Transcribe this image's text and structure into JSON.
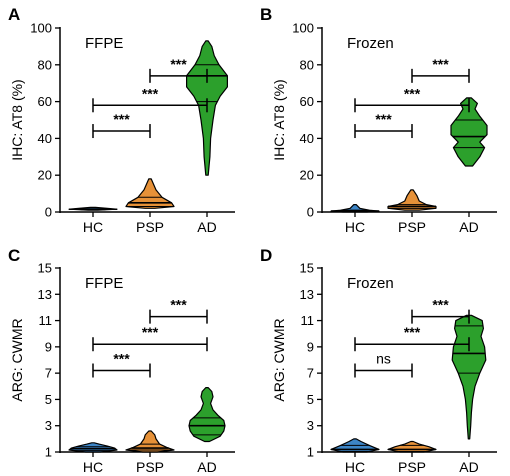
{
  "chart_data": [
    {
      "type": "violin",
      "panel_letter": "A",
      "inset_title": "FFPE",
      "ylabel": "IHC: AT8 (%)",
      "categories": [
        "HC",
        "PSP",
        "AD"
      ],
      "ylim": [
        0,
        100
      ],
      "yticks": [
        0,
        20,
        40,
        60,
        80,
        100
      ],
      "series": [
        {
          "group": "HC",
          "color": "#3d85c6",
          "median": 1.5,
          "quartiles": [
            1.2,
            1.8
          ],
          "min": 1,
          "max": 2.5,
          "max_halfwidth": 1
        },
        {
          "group": "PSP",
          "color": "#e69138",
          "median": 5,
          "quartiles": [
            3,
            8
          ],
          "min": 2,
          "max": 18,
          "max_halfwidth": 1
        },
        {
          "group": "AD",
          "color": "#2ca02c",
          "median": 74,
          "quartiles": [
            60,
            80
          ],
          "min": 20,
          "max": 93,
          "max_halfwidth": 1
        }
      ],
      "comparisons": [
        {
          "from": "HC",
          "to": "PSP",
          "label": "***"
        },
        {
          "from": "HC",
          "to": "AD",
          "label": "***"
        },
        {
          "from": "PSP",
          "to": "AD",
          "label": "***"
        }
      ]
    },
    {
      "type": "violin",
      "panel_letter": "B",
      "inset_title": "Frozen",
      "ylabel": "IHC: AT8 (%)",
      "categories": [
        "HC",
        "PSP",
        "AD"
      ],
      "ylim": [
        0,
        100
      ],
      "yticks": [
        0,
        20,
        40,
        60,
        80,
        100
      ],
      "series": [
        {
          "group": "HC",
          "color": "#3d85c6",
          "median": 0.5,
          "quartiles": [
            0.2,
            1
          ],
          "min": 0,
          "max": 4,
          "max_halfwidth": 1
        },
        {
          "group": "PSP",
          "color": "#e69138",
          "median": 3,
          "quartiles": [
            2,
            4
          ],
          "min": 1,
          "max": 12,
          "max_halfwidth": 1
        },
        {
          "group": "AD",
          "color": "#2ca02c",
          "median": 41,
          "quartiles": [
            35,
            50
          ],
          "min": 25,
          "max": 62,
          "max_halfwidth": 1
        }
      ],
      "comparisons": [
        {
          "from": "HC",
          "to": "PSP",
          "label": "***"
        },
        {
          "from": "HC",
          "to": "AD",
          "label": "***"
        },
        {
          "from": "PSP",
          "to": "AD",
          "label": "***"
        }
      ]
    },
    {
      "type": "violin",
      "panel_letter": "C",
      "inset_title": "FFPE",
      "ylabel": "ARG: CWMR",
      "categories": [
        "HC",
        "PSP",
        "AD"
      ],
      "ylim": [
        1,
        15
      ],
      "yticks": [
        1,
        3,
        5,
        7,
        9,
        11,
        13,
        15
      ],
      "series": [
        {
          "group": "HC",
          "color": "#3d85c6",
          "median": 1.25,
          "quartiles": [
            1.1,
            1.4
          ],
          "min": 1,
          "max": 1.7,
          "max_halfwidth": 1
        },
        {
          "group": "PSP",
          "color": "#e69138",
          "median": 1.3,
          "quartiles": [
            1.15,
            1.6
          ],
          "min": 1,
          "max": 2.6,
          "max_halfwidth": 1
        },
        {
          "group": "AD",
          "color": "#2ca02c",
          "median": 3,
          "quartiles": [
            2.3,
            3.6
          ],
          "min": 1.8,
          "max": 5.9,
          "max_halfwidth": 1
        }
      ],
      "comparisons": [
        {
          "from": "HC",
          "to": "PSP",
          "label": "***"
        },
        {
          "from": "HC",
          "to": "AD",
          "label": "***"
        },
        {
          "from": "PSP",
          "to": "AD",
          "label": "***"
        }
      ]
    },
    {
      "type": "violin",
      "panel_letter": "D",
      "inset_title": "Frozen",
      "ylabel": "ARG: CWMR",
      "categories": [
        "HC",
        "PSP",
        "AD"
      ],
      "ylim": [
        1,
        15
      ],
      "yticks": [
        1,
        3,
        5,
        7,
        9,
        11,
        13,
        15
      ],
      "series": [
        {
          "group": "HC",
          "color": "#3d85c6",
          "median": 1.2,
          "quartiles": [
            1.05,
            1.5
          ],
          "min": 1,
          "max": 2,
          "max_halfwidth": 1
        },
        {
          "group": "PSP",
          "color": "#e69138",
          "median": 1.2,
          "quartiles": [
            1.05,
            1.5
          ],
          "min": 1,
          "max": 1.8,
          "max_halfwidth": 1
        },
        {
          "group": "AD",
          "color": "#2ca02c",
          "median": 8.5,
          "quartiles": [
            7,
            10.6
          ],
          "min": 2,
          "max": 11.4,
          "max_halfwidth": 1
        }
      ],
      "comparisons": [
        {
          "from": "HC",
          "to": "PSP",
          "label": "ns"
        },
        {
          "from": "HC",
          "to": "AD",
          "label": "***"
        },
        {
          "from": "PSP",
          "to": "AD",
          "label": "***"
        }
      ]
    }
  ]
}
